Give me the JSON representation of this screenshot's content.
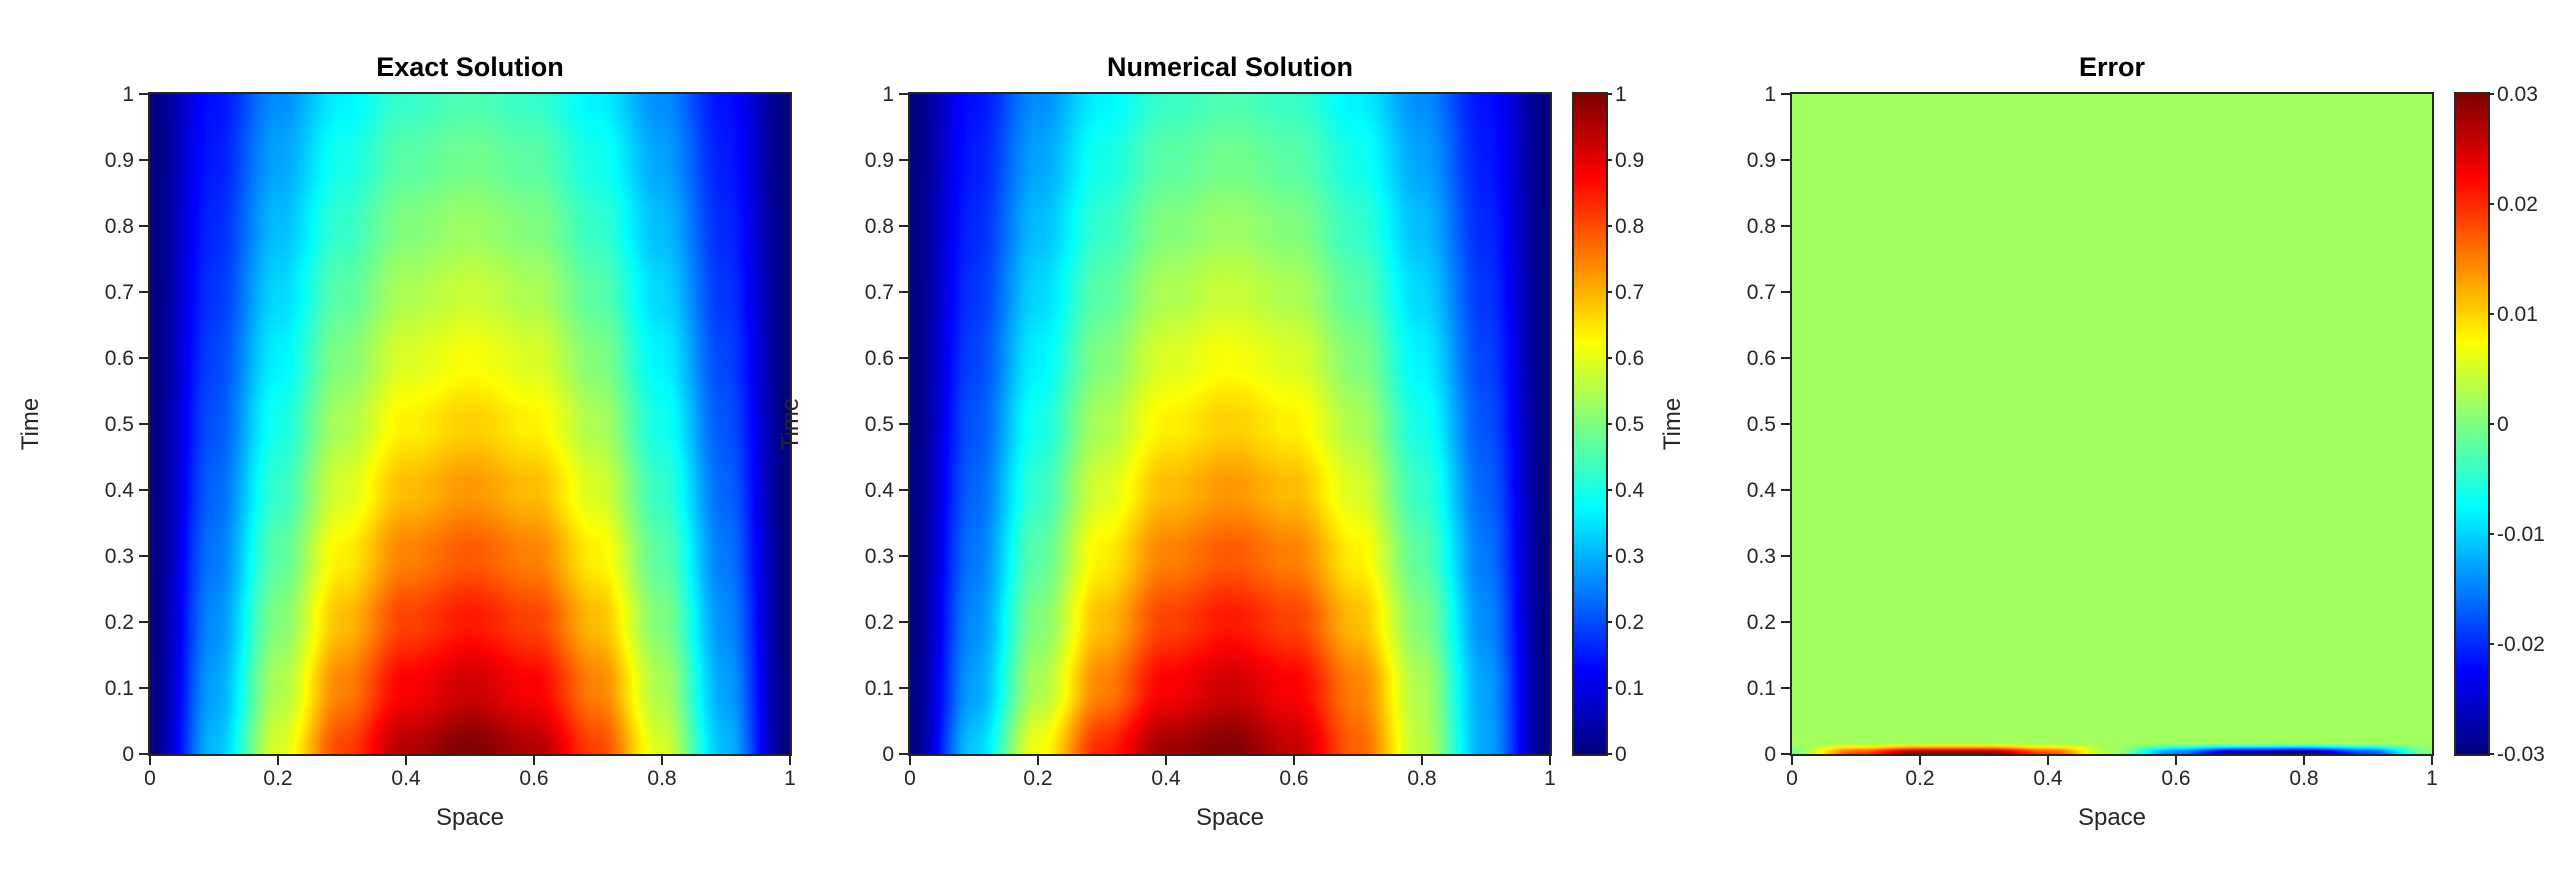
{
  "figure": {
    "background": "#ffffff",
    "axes_color": "#262626",
    "title_color": "#000000",
    "colormap": "jet"
  },
  "chart_data": [
    {
      "type": "heatmap",
      "title": "Exact Solution",
      "xlabel": "Space",
      "ylabel": "Time",
      "xlim": [
        0,
        1
      ],
      "ylim": [
        0,
        1
      ],
      "vmin": 0,
      "vmax": 1,
      "x_ticks": [
        0,
        0.2,
        0.4,
        0.6,
        0.8,
        1
      ],
      "y_ticks": [
        0,
        0.1,
        0.2,
        0.3,
        0.4,
        0.5,
        0.6,
        0.7,
        0.8,
        0.9,
        1
      ],
      "x": [
        0,
        0.1,
        0.2,
        0.3,
        0.4,
        0.5,
        0.6,
        0.7,
        0.8,
        0.9,
        1
      ],
      "y": [
        0,
        0.1,
        0.2,
        0.3,
        0.4,
        0.5,
        0.6,
        0.7,
        0.8,
        0.9,
        1
      ],
      "values": [
        [
          0,
          0.309,
          0.588,
          0.809,
          0.951,
          1.0,
          0.951,
          0.809,
          0.588,
          0.309,
          0
        ],
        [
          0,
          0.285,
          0.543,
          0.747,
          0.878,
          0.923,
          0.878,
          0.747,
          0.543,
          0.285,
          0
        ],
        [
          0,
          0.263,
          0.501,
          0.689,
          0.81,
          0.852,
          0.81,
          0.689,
          0.501,
          0.263,
          0
        ],
        [
          0,
          0.243,
          0.463,
          0.637,
          0.748,
          0.787,
          0.748,
          0.637,
          0.463,
          0.243,
          0
        ],
        [
          0,
          0.224,
          0.427,
          0.587,
          0.69,
          0.726,
          0.69,
          0.587,
          0.427,
          0.224,
          0
        ],
        [
          0,
          0.207,
          0.394,
          0.542,
          0.637,
          0.67,
          0.637,
          0.542,
          0.394,
          0.207,
          0
        ],
        [
          0,
          0.191,
          0.364,
          0.501,
          0.589,
          0.619,
          0.589,
          0.501,
          0.364,
          0.191,
          0
        ],
        [
          0,
          0.176,
          0.336,
          0.462,
          0.543,
          0.571,
          0.543,
          0.462,
          0.336,
          0.176,
          0
        ],
        [
          0,
          0.163,
          0.31,
          0.426,
          0.501,
          0.527,
          0.501,
          0.426,
          0.31,
          0.163,
          0
        ],
        [
          0,
          0.15,
          0.286,
          0.394,
          0.463,
          0.487,
          0.463,
          0.394,
          0.286,
          0.15,
          0
        ],
        [
          0,
          0.139,
          0.264,
          0.363,
          0.427,
          0.449,
          0.427,
          0.363,
          0.264,
          0.139,
          0
        ]
      ],
      "colorbar": null
    },
    {
      "type": "heatmap",
      "title": "Numerical Solution",
      "xlabel": "Space",
      "ylabel": "Time",
      "xlim": [
        0,
        1
      ],
      "ylim": [
        0,
        1
      ],
      "vmin": 0,
      "vmax": 1,
      "x_ticks": [
        0,
        0.2,
        0.4,
        0.6,
        0.8,
        1
      ],
      "y_ticks": [
        0,
        0.1,
        0.2,
        0.3,
        0.4,
        0.5,
        0.6,
        0.7,
        0.8,
        0.9,
        1
      ],
      "x": [
        0,
        0.1,
        0.2,
        0.3,
        0.4,
        0.5,
        0.6,
        0.7,
        0.8,
        0.9,
        1
      ],
      "y": [
        0,
        0.1,
        0.2,
        0.3,
        0.4,
        0.5,
        0.6,
        0.7,
        0.8,
        0.9,
        1
      ],
      "values": [
        [
          0,
          0.327,
          0.617,
          0.838,
          0.969,
          1.0,
          0.933,
          0.78,
          0.559,
          0.291,
          0
        ],
        [
          0,
          0.285,
          0.543,
          0.747,
          0.878,
          0.923,
          0.878,
          0.747,
          0.543,
          0.285,
          0
        ],
        [
          0,
          0.263,
          0.501,
          0.689,
          0.81,
          0.852,
          0.81,
          0.689,
          0.501,
          0.263,
          0
        ],
        [
          0,
          0.243,
          0.463,
          0.637,
          0.748,
          0.787,
          0.748,
          0.637,
          0.463,
          0.243,
          0
        ],
        [
          0,
          0.224,
          0.427,
          0.587,
          0.69,
          0.726,
          0.69,
          0.587,
          0.427,
          0.224,
          0
        ],
        [
          0,
          0.207,
          0.394,
          0.542,
          0.637,
          0.67,
          0.637,
          0.542,
          0.394,
          0.207,
          0
        ],
        [
          0,
          0.191,
          0.364,
          0.501,
          0.589,
          0.619,
          0.589,
          0.501,
          0.364,
          0.191,
          0
        ],
        [
          0,
          0.176,
          0.336,
          0.462,
          0.543,
          0.571,
          0.543,
          0.462,
          0.336,
          0.176,
          0
        ],
        [
          0,
          0.163,
          0.31,
          0.426,
          0.501,
          0.527,
          0.501,
          0.426,
          0.31,
          0.163,
          0
        ],
        [
          0,
          0.15,
          0.286,
          0.394,
          0.463,
          0.487,
          0.463,
          0.394,
          0.286,
          0.15,
          0
        ],
        [
          0,
          0.139,
          0.264,
          0.363,
          0.427,
          0.449,
          0.427,
          0.363,
          0.264,
          0.139,
          0
        ]
      ],
      "colorbar": {
        "vmin": 0,
        "vmax": 1,
        "ticks": [
          0,
          0.1,
          0.2,
          0.3,
          0.4,
          0.5,
          0.6,
          0.7,
          0.8,
          0.9,
          1
        ]
      }
    },
    {
      "type": "heatmap",
      "title": "Error",
      "xlabel": "Space",
      "ylabel": "Time",
      "xlim": [
        0,
        1
      ],
      "ylim": [
        0,
        1
      ],
      "vmin": -0.03,
      "vmax": 0.03,
      "x_ticks": [
        0,
        0.2,
        0.4,
        0.6,
        0.8,
        1
      ],
      "y_ticks": [
        0,
        0.1,
        0.2,
        0.3,
        0.4,
        0.5,
        0.6,
        0.7,
        0.8,
        0.9,
        1
      ],
      "x": [
        0,
        0.1,
        0.2,
        0.3,
        0.4,
        0.5,
        0.6,
        0.7,
        0.8,
        0.9,
        1
      ],
      "y": [
        0,
        0.015,
        1
      ],
      "values": [
        [
          0,
          0.018,
          0.029,
          0.029,
          0.018,
          0.002,
          -0.015,
          -0.027,
          -0.029,
          -0.018,
          0
        ],
        [
          0.002,
          0.002,
          0.002,
          0.002,
          0.002,
          0.002,
          0.002,
          0.002,
          0.002,
          0.002,
          0.002
        ],
        [
          0.002,
          0.002,
          0.002,
          0.002,
          0.002,
          0.002,
          0.002,
          0.002,
          0.002,
          0.002,
          0.002
        ]
      ],
      "colorbar": {
        "vmin": -0.03,
        "vmax": 0.03,
        "ticks": [
          -0.03,
          -0.02,
          -0.01,
          0,
          0.01,
          0.02,
          0.03
        ]
      }
    }
  ]
}
